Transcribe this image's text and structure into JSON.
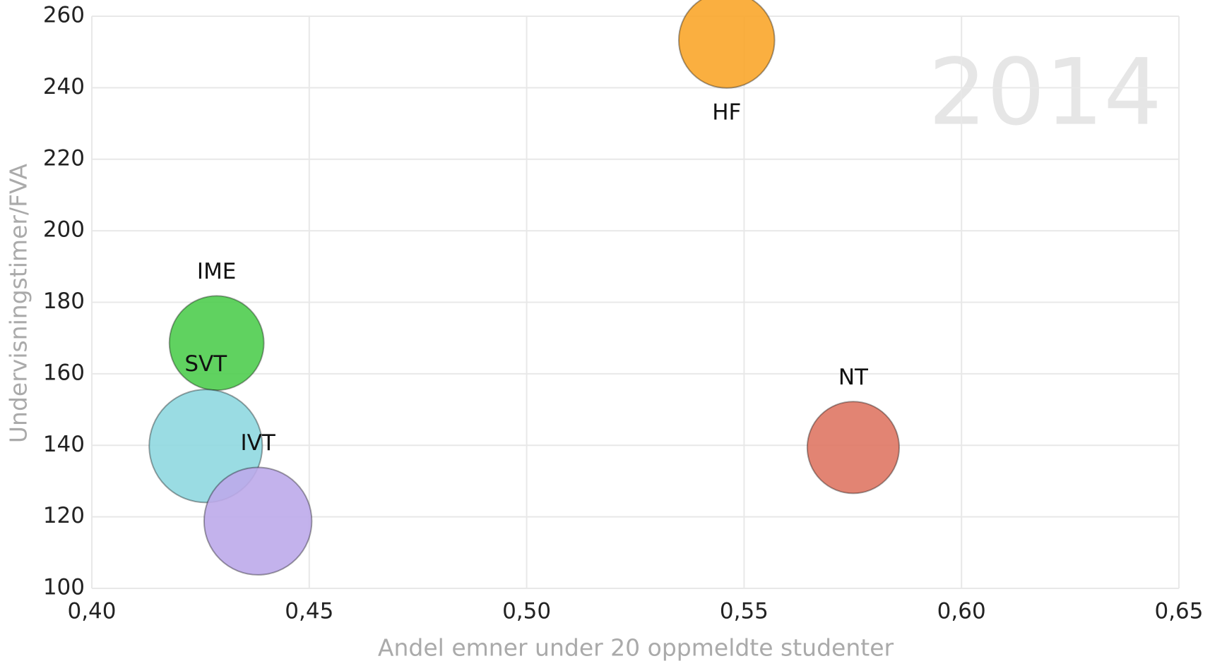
{
  "chart_data": {
    "type": "bubble",
    "xlabel": "Andel emner under 20 oppmeldte studenter",
    "ylabel": "Undervisningstimer/FVA",
    "annotation": "2014",
    "xlim": [
      0.4,
      0.65
    ],
    "xticks": [
      {
        "value": 0.4,
        "label": "0,40"
      },
      {
        "value": 0.45,
        "label": "0,45"
      },
      {
        "value": 0.5,
        "label": "0,50"
      },
      {
        "value": 0.55,
        "label": "0,55"
      },
      {
        "value": 0.6,
        "label": "0,60"
      },
      {
        "value": 0.65,
        "label": "0,65"
      }
    ],
    "ylim": [
      100,
      260
    ],
    "yticks": [
      100,
      120,
      140,
      160,
      180,
      200,
      220,
      240,
      260
    ],
    "grid": true,
    "series": [
      {
        "name": "HF",
        "color": "#f9a62b",
        "x": [
          0.546
        ],
        "values": [
          253.3
        ],
        "sizes": [
          38
        ]
      },
      {
        "name": "IME",
        "color": "#4fcd4f",
        "x": [
          0.4287
        ],
        "values": [
          168.6
        ],
        "sizes": [
          37
        ]
      },
      {
        "name": "SVT",
        "color": "#8fd8e0",
        "x": [
          0.4262
        ],
        "values": [
          139.8
        ],
        "sizes": [
          53
        ]
      },
      {
        "name": "IVT",
        "color": "#bcaaea",
        "x": [
          0.4382
        ],
        "values": [
          118.8
        ],
        "sizes": [
          48
        ]
      },
      {
        "name": "NT",
        "color": "#df7764",
        "x": [
          0.5751
        ],
        "values": [
          139.4
        ],
        "sizes": [
          35
        ]
      }
    ]
  }
}
